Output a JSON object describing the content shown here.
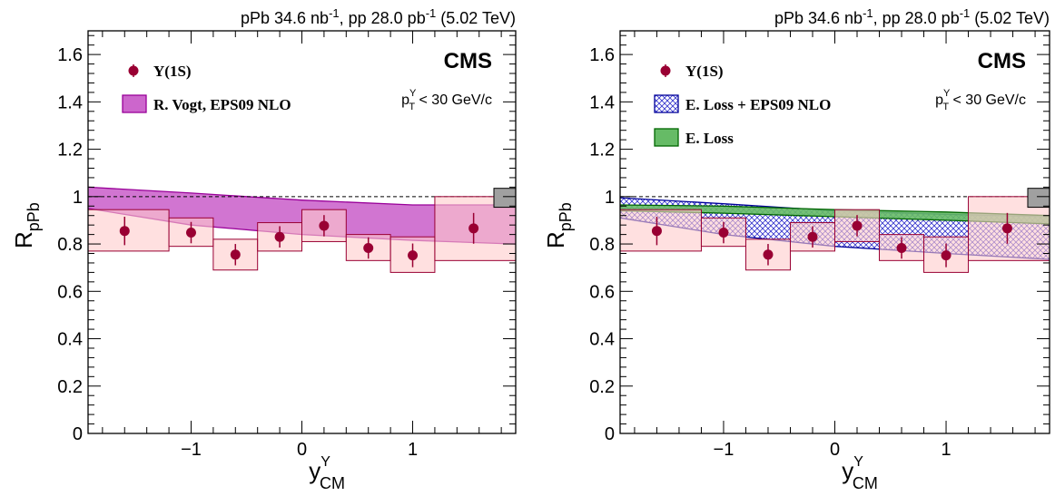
{
  "chart_data": [
    {
      "type": "scatter",
      "panel": "left",
      "lumi_label": "pPb 34.6 nb",
      "lumi_sup": "-1",
      "lumi_pp": ", pp 28.0 pb",
      "lumi_energy": " (5.02 TeV)",
      "experiment": "CMS",
      "cut_text": "p",
      "cut_sub": "T",
      "cut_sup": "Υ",
      "cut_rest": " < 30 GeV/c",
      "ylabel": "R",
      "ylabel_sub": "pPb",
      "xlabel": "y",
      "xlabel_sup": "Υ",
      "xlabel_sub": "CM",
      "xlim": [
        -1.93,
        1.93
      ],
      "ylim": [
        0,
        1.7
      ],
      "x_ticks": [
        {
          "v": -1,
          "label": "−1"
        },
        {
          "v": 0,
          "label": "0"
        },
        {
          "v": 1,
          "label": "1"
        }
      ],
      "y_ticks": [
        {
          "v": 0,
          "label": "0"
        },
        {
          "v": 0.2,
          "label": "0.2"
        },
        {
          "v": 0.4,
          "label": "0.4"
        },
        {
          "v": 0.6,
          "label": "0.6"
        },
        {
          "v": 0.8,
          "label": "0.8"
        },
        {
          "v": 1,
          "label": "1"
        },
        {
          "v": 1.2,
          "label": "1.2"
        },
        {
          "v": 1.4,
          "label": "1.4"
        },
        {
          "v": 1.6,
          "label": "1.6"
        }
      ],
      "reference_line": 1,
      "global_uncertainty": {
        "low": 0.955,
        "high": 1.035,
        "color": "#a0a0a0"
      },
      "series": [
        {
          "name": "Υ(1S)",
          "kind": "points",
          "color": "#990033",
          "x": [
            -1.6,
            -1.0,
            -0.6,
            -0.2,
            0.2,
            0.6,
            1.0,
            1.55
          ],
          "y": [
            0.855,
            0.848,
            0.755,
            0.83,
            0.877,
            0.783,
            0.752,
            0.866
          ],
          "stat_err": [
            0.06,
            0.045,
            0.045,
            0.045,
            0.045,
            0.045,
            0.05,
            0.065
          ],
          "x_bins": [
            [
              -1.93,
              -1.2
            ],
            [
              -1.2,
              -0.8
            ],
            [
              -0.8,
              -0.4
            ],
            [
              -0.4,
              0.0
            ],
            [
              0.0,
              0.4
            ],
            [
              0.4,
              0.8
            ],
            [
              0.8,
              1.2
            ],
            [
              1.2,
              1.93
            ]
          ],
          "syst_low": [
            0.77,
            0.79,
            0.69,
            0.77,
            0.81,
            0.73,
            0.68,
            0.73
          ],
          "syst_high": [
            0.945,
            0.91,
            0.82,
            0.89,
            0.945,
            0.84,
            0.83,
            1.0
          ]
        },
        {
          "name": "R. Vogt, EPS09 NLO",
          "kind": "band",
          "color": "#cc66cc",
          "edge": "#990099",
          "x": [
            -1.93,
            -1.0,
            0.0,
            1.0,
            1.93
          ],
          "low": [
            0.95,
            0.88,
            0.84,
            0.815,
            0.8
          ],
          "high": [
            1.04,
            1.015,
            0.985,
            0.965,
            0.965
          ]
        }
      ]
    },
    {
      "type": "scatter",
      "panel": "right",
      "lumi_label": "pPb 34.6 nb",
      "lumi_sup": "-1",
      "lumi_pp": ", pp 28.0 pb",
      "lumi_energy": " (5.02 TeV)",
      "experiment": "CMS",
      "cut_text": "p",
      "cut_sub": "T",
      "cut_sup": "Υ",
      "cut_rest": " < 30 GeV/c",
      "ylabel": "R",
      "ylabel_sub": "pPb",
      "xlabel": "y",
      "xlabel_sup": "Υ",
      "xlabel_sub": "CM",
      "xlim": [
        -1.93,
        1.93
      ],
      "ylim": [
        0,
        1.7
      ],
      "x_ticks": [
        {
          "v": -1,
          "label": "−1"
        },
        {
          "v": 0,
          "label": "0"
        },
        {
          "v": 1,
          "label": "1"
        }
      ],
      "y_ticks": [
        {
          "v": 0,
          "label": "0"
        },
        {
          "v": 0.2,
          "label": "0.2"
        },
        {
          "v": 0.4,
          "label": "0.4"
        },
        {
          "v": 0.6,
          "label": "0.6"
        },
        {
          "v": 0.8,
          "label": "0.8"
        },
        {
          "v": 1,
          "label": "1"
        },
        {
          "v": 1.2,
          "label": "1.2"
        },
        {
          "v": 1.4,
          "label": "1.4"
        },
        {
          "v": 1.6,
          "label": "1.6"
        }
      ],
      "reference_line": 1,
      "global_uncertainty": {
        "low": 0.955,
        "high": 1.035,
        "color": "#a0a0a0"
      },
      "series": [
        {
          "name": "Υ(1S)",
          "kind": "points",
          "color": "#990033",
          "x": [
            -1.6,
            -1.0,
            -0.6,
            -0.2,
            0.2,
            0.6,
            1.0,
            1.55
          ],
          "y": [
            0.855,
            0.848,
            0.755,
            0.83,
            0.877,
            0.783,
            0.752,
            0.866
          ],
          "stat_err": [
            0.06,
            0.045,
            0.045,
            0.045,
            0.045,
            0.045,
            0.05,
            0.065
          ],
          "x_bins": [
            [
              -1.93,
              -1.2
            ],
            [
              -1.2,
              -0.8
            ],
            [
              -0.8,
              -0.4
            ],
            [
              -0.4,
              0.0
            ],
            [
              0.0,
              0.4
            ],
            [
              0.4,
              0.8
            ],
            [
              0.8,
              1.2
            ],
            [
              1.2,
              1.93
            ]
          ],
          "syst_low": [
            0.77,
            0.79,
            0.69,
            0.77,
            0.81,
            0.73,
            0.68,
            0.73
          ],
          "syst_high": [
            0.945,
            0.91,
            0.82,
            0.89,
            0.945,
            0.84,
            0.83,
            1.0
          ]
        },
        {
          "name": "E. Loss + EPS09 NLO",
          "kind": "band-hatched",
          "color": "#3333cc",
          "edge": "#000099",
          "x": [
            -1.93,
            -1.0,
            0.0,
            1.0,
            1.93
          ],
          "low": [
            0.91,
            0.84,
            0.79,
            0.76,
            0.735
          ],
          "high": [
            0.995,
            0.97,
            0.94,
            0.925,
            0.915
          ]
        },
        {
          "name": "E. Loss",
          "kind": "band",
          "color": "#66bb66",
          "edge": "#006600",
          "x": [
            -1.93,
            -1.0,
            0.0,
            1.0,
            1.93
          ],
          "low": [
            0.94,
            0.93,
            0.915,
            0.9,
            0.885
          ],
          "high": [
            0.965,
            0.96,
            0.945,
            0.935,
            0.92
          ]
        }
      ]
    }
  ]
}
